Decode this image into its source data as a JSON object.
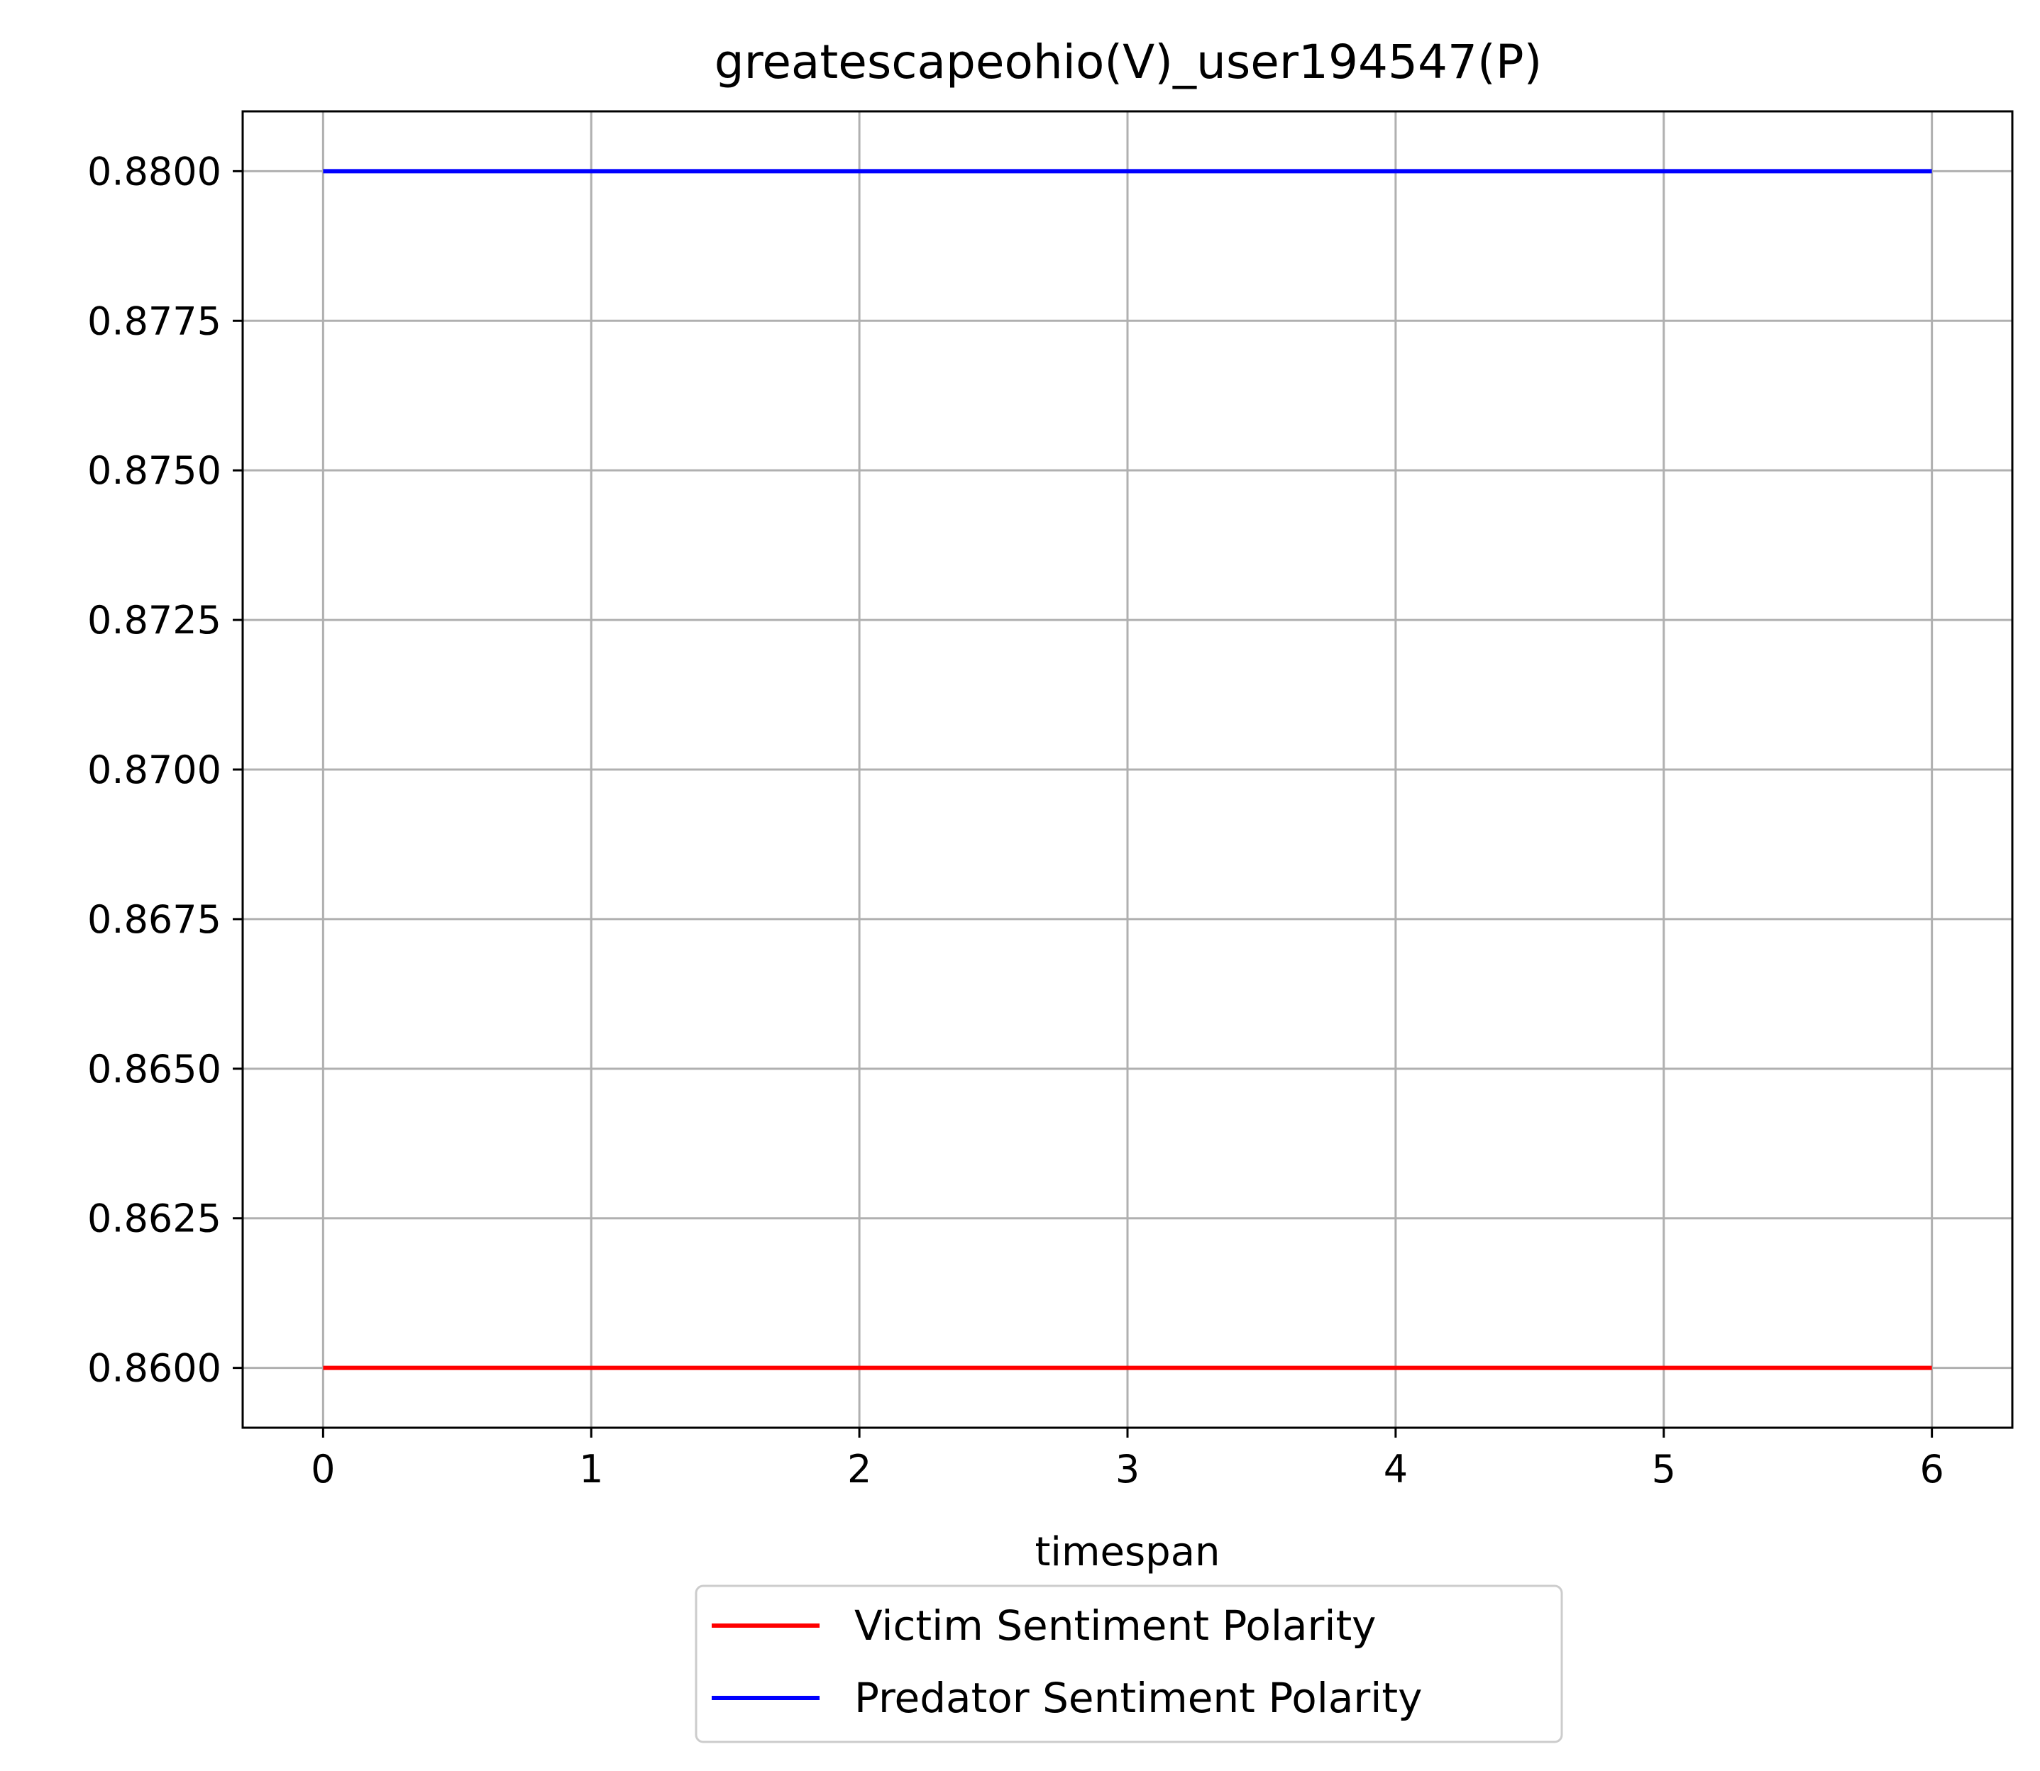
{
  "chart_data": {
    "type": "line",
    "title": "greatescapeohio(V)_user194547(P)",
    "xlabel": "timespan",
    "ylabel": "",
    "x": [
      0,
      1,
      2,
      3,
      4,
      5,
      6
    ],
    "xlim": [
      -0.3,
      6.3
    ],
    "ylim": [
      0.859,
      0.881
    ],
    "x_ticks": [
      0,
      1,
      2,
      3,
      4,
      5,
      6
    ],
    "y_ticks": [
      0.86,
      0.8625,
      0.865,
      0.8675,
      0.87,
      0.8725,
      0.875,
      0.8775,
      0.88
    ],
    "x_tick_labels": [
      "0",
      "1",
      "2",
      "3",
      "4",
      "5",
      "6"
    ],
    "y_tick_labels": [
      "0.8600",
      "0.8625",
      "0.8650",
      "0.8675",
      "0.8700",
      "0.8725",
      "0.8750",
      "0.8775",
      "0.8800"
    ],
    "grid": true,
    "legend_position": "below-center",
    "series": [
      {
        "name": "Victim Sentiment Polarity",
        "color": "#ff0000",
        "values": [
          0.86,
          0.86,
          0.86,
          0.86,
          0.86,
          0.86,
          0.86
        ]
      },
      {
        "name": "Predator Sentiment Polarity",
        "color": "#0000ff",
        "values": [
          0.88,
          0.88,
          0.88,
          0.88,
          0.88,
          0.88,
          0.88
        ]
      }
    ]
  }
}
